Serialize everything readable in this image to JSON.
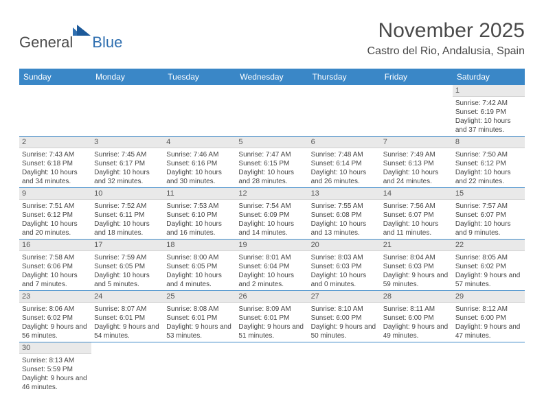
{
  "brand": {
    "general": "General",
    "blue": "Blue"
  },
  "title": "November 2025",
  "location": "Castro del Rio, Andalusia, Spain",
  "weekdays": [
    "Sunday",
    "Monday",
    "Tuesday",
    "Wednesday",
    "Thursday",
    "Friday",
    "Saturday"
  ],
  "colors": {
    "header_bg": "#3a87c7",
    "header_fg": "#ffffff",
    "daynum_bg": "#e9e9e9",
    "border": "#3a87c7",
    "logo_blue": "#2f6fb0",
    "text": "#4a4a4a"
  },
  "weeks": [
    [
      null,
      null,
      null,
      null,
      null,
      null,
      {
        "n": "1",
        "sunrise": "Sunrise: 7:42 AM",
        "sunset": "Sunset: 6:19 PM",
        "daylight": "Daylight: 10 hours and 37 minutes."
      }
    ],
    [
      {
        "n": "2",
        "sunrise": "Sunrise: 7:43 AM",
        "sunset": "Sunset: 6:18 PM",
        "daylight": "Daylight: 10 hours and 34 minutes."
      },
      {
        "n": "3",
        "sunrise": "Sunrise: 7:45 AM",
        "sunset": "Sunset: 6:17 PM",
        "daylight": "Daylight: 10 hours and 32 minutes."
      },
      {
        "n": "4",
        "sunrise": "Sunrise: 7:46 AM",
        "sunset": "Sunset: 6:16 PM",
        "daylight": "Daylight: 10 hours and 30 minutes."
      },
      {
        "n": "5",
        "sunrise": "Sunrise: 7:47 AM",
        "sunset": "Sunset: 6:15 PM",
        "daylight": "Daylight: 10 hours and 28 minutes."
      },
      {
        "n": "6",
        "sunrise": "Sunrise: 7:48 AM",
        "sunset": "Sunset: 6:14 PM",
        "daylight": "Daylight: 10 hours and 26 minutes."
      },
      {
        "n": "7",
        "sunrise": "Sunrise: 7:49 AM",
        "sunset": "Sunset: 6:13 PM",
        "daylight": "Daylight: 10 hours and 24 minutes."
      },
      {
        "n": "8",
        "sunrise": "Sunrise: 7:50 AM",
        "sunset": "Sunset: 6:12 PM",
        "daylight": "Daylight: 10 hours and 22 minutes."
      }
    ],
    [
      {
        "n": "9",
        "sunrise": "Sunrise: 7:51 AM",
        "sunset": "Sunset: 6:12 PM",
        "daylight": "Daylight: 10 hours and 20 minutes."
      },
      {
        "n": "10",
        "sunrise": "Sunrise: 7:52 AM",
        "sunset": "Sunset: 6:11 PM",
        "daylight": "Daylight: 10 hours and 18 minutes."
      },
      {
        "n": "11",
        "sunrise": "Sunrise: 7:53 AM",
        "sunset": "Sunset: 6:10 PM",
        "daylight": "Daylight: 10 hours and 16 minutes."
      },
      {
        "n": "12",
        "sunrise": "Sunrise: 7:54 AM",
        "sunset": "Sunset: 6:09 PM",
        "daylight": "Daylight: 10 hours and 14 minutes."
      },
      {
        "n": "13",
        "sunrise": "Sunrise: 7:55 AM",
        "sunset": "Sunset: 6:08 PM",
        "daylight": "Daylight: 10 hours and 13 minutes."
      },
      {
        "n": "14",
        "sunrise": "Sunrise: 7:56 AM",
        "sunset": "Sunset: 6:07 PM",
        "daylight": "Daylight: 10 hours and 11 minutes."
      },
      {
        "n": "15",
        "sunrise": "Sunrise: 7:57 AM",
        "sunset": "Sunset: 6:07 PM",
        "daylight": "Daylight: 10 hours and 9 minutes."
      }
    ],
    [
      {
        "n": "16",
        "sunrise": "Sunrise: 7:58 AM",
        "sunset": "Sunset: 6:06 PM",
        "daylight": "Daylight: 10 hours and 7 minutes."
      },
      {
        "n": "17",
        "sunrise": "Sunrise: 7:59 AM",
        "sunset": "Sunset: 6:05 PM",
        "daylight": "Daylight: 10 hours and 5 minutes."
      },
      {
        "n": "18",
        "sunrise": "Sunrise: 8:00 AM",
        "sunset": "Sunset: 6:05 PM",
        "daylight": "Daylight: 10 hours and 4 minutes."
      },
      {
        "n": "19",
        "sunrise": "Sunrise: 8:01 AM",
        "sunset": "Sunset: 6:04 PM",
        "daylight": "Daylight: 10 hours and 2 minutes."
      },
      {
        "n": "20",
        "sunrise": "Sunrise: 8:03 AM",
        "sunset": "Sunset: 6:03 PM",
        "daylight": "Daylight: 10 hours and 0 minutes."
      },
      {
        "n": "21",
        "sunrise": "Sunrise: 8:04 AM",
        "sunset": "Sunset: 6:03 PM",
        "daylight": "Daylight: 9 hours and 59 minutes."
      },
      {
        "n": "22",
        "sunrise": "Sunrise: 8:05 AM",
        "sunset": "Sunset: 6:02 PM",
        "daylight": "Daylight: 9 hours and 57 minutes."
      }
    ],
    [
      {
        "n": "23",
        "sunrise": "Sunrise: 8:06 AM",
        "sunset": "Sunset: 6:02 PM",
        "daylight": "Daylight: 9 hours and 56 minutes."
      },
      {
        "n": "24",
        "sunrise": "Sunrise: 8:07 AM",
        "sunset": "Sunset: 6:01 PM",
        "daylight": "Daylight: 9 hours and 54 minutes."
      },
      {
        "n": "25",
        "sunrise": "Sunrise: 8:08 AM",
        "sunset": "Sunset: 6:01 PM",
        "daylight": "Daylight: 9 hours and 53 minutes."
      },
      {
        "n": "26",
        "sunrise": "Sunrise: 8:09 AM",
        "sunset": "Sunset: 6:01 PM",
        "daylight": "Daylight: 9 hours and 51 minutes."
      },
      {
        "n": "27",
        "sunrise": "Sunrise: 8:10 AM",
        "sunset": "Sunset: 6:00 PM",
        "daylight": "Daylight: 9 hours and 50 minutes."
      },
      {
        "n": "28",
        "sunrise": "Sunrise: 8:11 AM",
        "sunset": "Sunset: 6:00 PM",
        "daylight": "Daylight: 9 hours and 49 minutes."
      },
      {
        "n": "29",
        "sunrise": "Sunrise: 8:12 AM",
        "sunset": "Sunset: 6:00 PM",
        "daylight": "Daylight: 9 hours and 47 minutes."
      }
    ],
    [
      {
        "n": "30",
        "sunrise": "Sunrise: 8:13 AM",
        "sunset": "Sunset: 5:59 PM",
        "daylight": "Daylight: 9 hours and 46 minutes."
      },
      null,
      null,
      null,
      null,
      null,
      null
    ]
  ]
}
